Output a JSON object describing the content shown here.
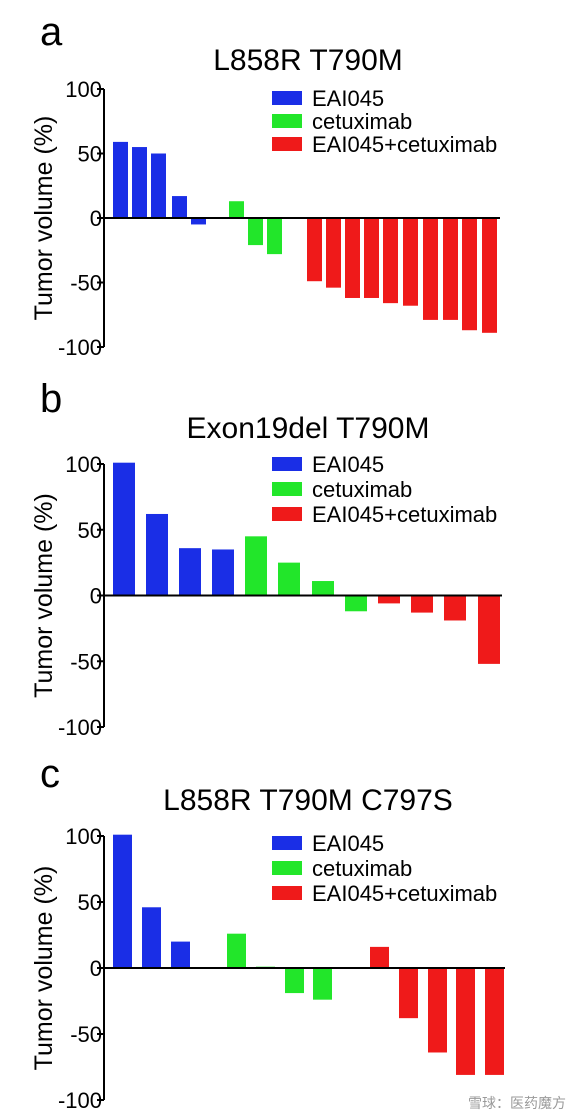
{
  "colors": {
    "blue": "#1a2ee6",
    "green": "#22e62a",
    "red": "#ef1a1a"
  },
  "watermark": "雪球：医药魔方",
  "chart_data": [
    {
      "letter": "a",
      "type": "bar",
      "title": "L858R T790M",
      "ylabel": "Tumor volume (%)",
      "ylim": [
        -100,
        100
      ],
      "yticks": [
        "100",
        "50",
        "0",
        "-50",
        "-100"
      ],
      "legend": [
        "EAI045",
        "cetuximab",
        "EAI045+cetuximab"
      ],
      "legend_position": "top-right",
      "series": [
        {
          "name": "EAI045",
          "color": "blue",
          "values": [
            59,
            55,
            50,
            17,
            -5
          ]
        },
        {
          "name": "cetuximab",
          "color": "green",
          "values": [
            13,
            -21,
            -28
          ]
        },
        {
          "name": "EAI045+cetuximab",
          "color": "red",
          "values": [
            -49,
            -54,
            -62,
            -62,
            -66,
            -68,
            -79,
            -79,
            -87,
            -89
          ]
        }
      ]
    },
    {
      "letter": "b",
      "type": "bar",
      "title": "Exon19del T790M",
      "ylabel": "Tumor volume (%)",
      "ylim": [
        -100,
        100
      ],
      "yticks": [
        "100",
        "50",
        "0",
        "-50",
        "-100"
      ],
      "legend": [
        "EAI045",
        "cetuximab",
        "EAI045+cetuximab"
      ],
      "legend_position": "top-right",
      "series": [
        {
          "name": "EAI045",
          "color": "blue",
          "values": [
            101,
            62,
            36,
            35
          ]
        },
        {
          "name": "cetuximab",
          "color": "green",
          "values": [
            45,
            25,
            11,
            -12
          ]
        },
        {
          "name": "EAI045+cetuximab",
          "color": "red",
          "values": [
            -6,
            -13,
            -19,
            -52
          ]
        }
      ]
    },
    {
      "letter": "c",
      "type": "bar",
      "title": "L858R T790M C797S",
      "ylabel": "Tumor volume (%)",
      "ylim": [
        -100,
        100
      ],
      "yticks": [
        "100",
        "50",
        "0",
        "-50",
        "-100"
      ],
      "legend": [
        "EAI045",
        "cetuximab",
        "EAI045+cetuximab"
      ],
      "legend_position": "top-right",
      "series": [
        {
          "name": "EAI045",
          "color": "blue",
          "values": [
            101,
            46,
            20
          ]
        },
        {
          "name": "cetuximab",
          "color": "green",
          "values": [
            26,
            1,
            -19,
            -24
          ]
        },
        {
          "name": "EAI045+cetuximab",
          "color": "red",
          "values": [
            16,
            -38,
            -64,
            -81,
            -81
          ]
        }
      ]
    }
  ]
}
